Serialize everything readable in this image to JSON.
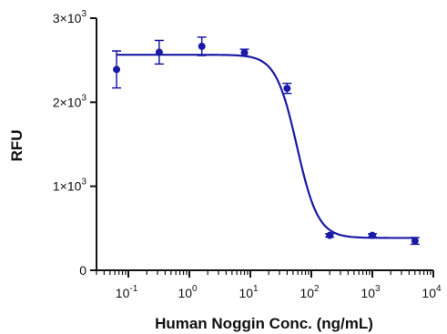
{
  "chart_data": {
    "type": "scatter",
    "title": "",
    "xlabel": "Human Noggin Conc. (ng/mL)",
    "ylabel": "RFU",
    "x_scale": "log",
    "xlim": [
      0.03,
      10000
    ],
    "ylim": [
      0,
      3000
    ],
    "grid": false,
    "color": "#1a1aa6",
    "x_ticks": [
      {
        "value": 0.1,
        "base": "10",
        "exp": "-1"
      },
      {
        "value": 1,
        "base": "10",
        "exp": "0"
      },
      {
        "value": 10,
        "base": "10",
        "exp": "1"
      },
      {
        "value": 100,
        "base": "10",
        "exp": "2"
      },
      {
        "value": 1000,
        "base": "10",
        "exp": "3"
      },
      {
        "value": 10000,
        "base": "10",
        "exp": "4"
      }
    ],
    "y_ticks": [
      {
        "value": 0,
        "main": "0",
        "exp": ""
      },
      {
        "value": 1000,
        "main": "1×10",
        "exp": "3"
      },
      {
        "value": 2000,
        "main": "2×10",
        "exp": "3"
      },
      {
        "value": 3000,
        "main": "3×10",
        "exp": "3"
      }
    ],
    "series": [
      {
        "x": [
          0.064,
          0.32,
          1.6,
          8,
          40,
          200,
          1000,
          5000
        ],
        "y": [
          2390,
          2595,
          2665,
          2590,
          2165,
          415,
          415,
          350
        ],
        "error": [
          220,
          140,
          110,
          40,
          60,
          20,
          20,
          40
        ]
      }
    ],
    "fit": {
      "model": "4PL",
      "top": 2565,
      "bottom": 385,
      "ec50": 58,
      "hill": 2.5
    }
  }
}
